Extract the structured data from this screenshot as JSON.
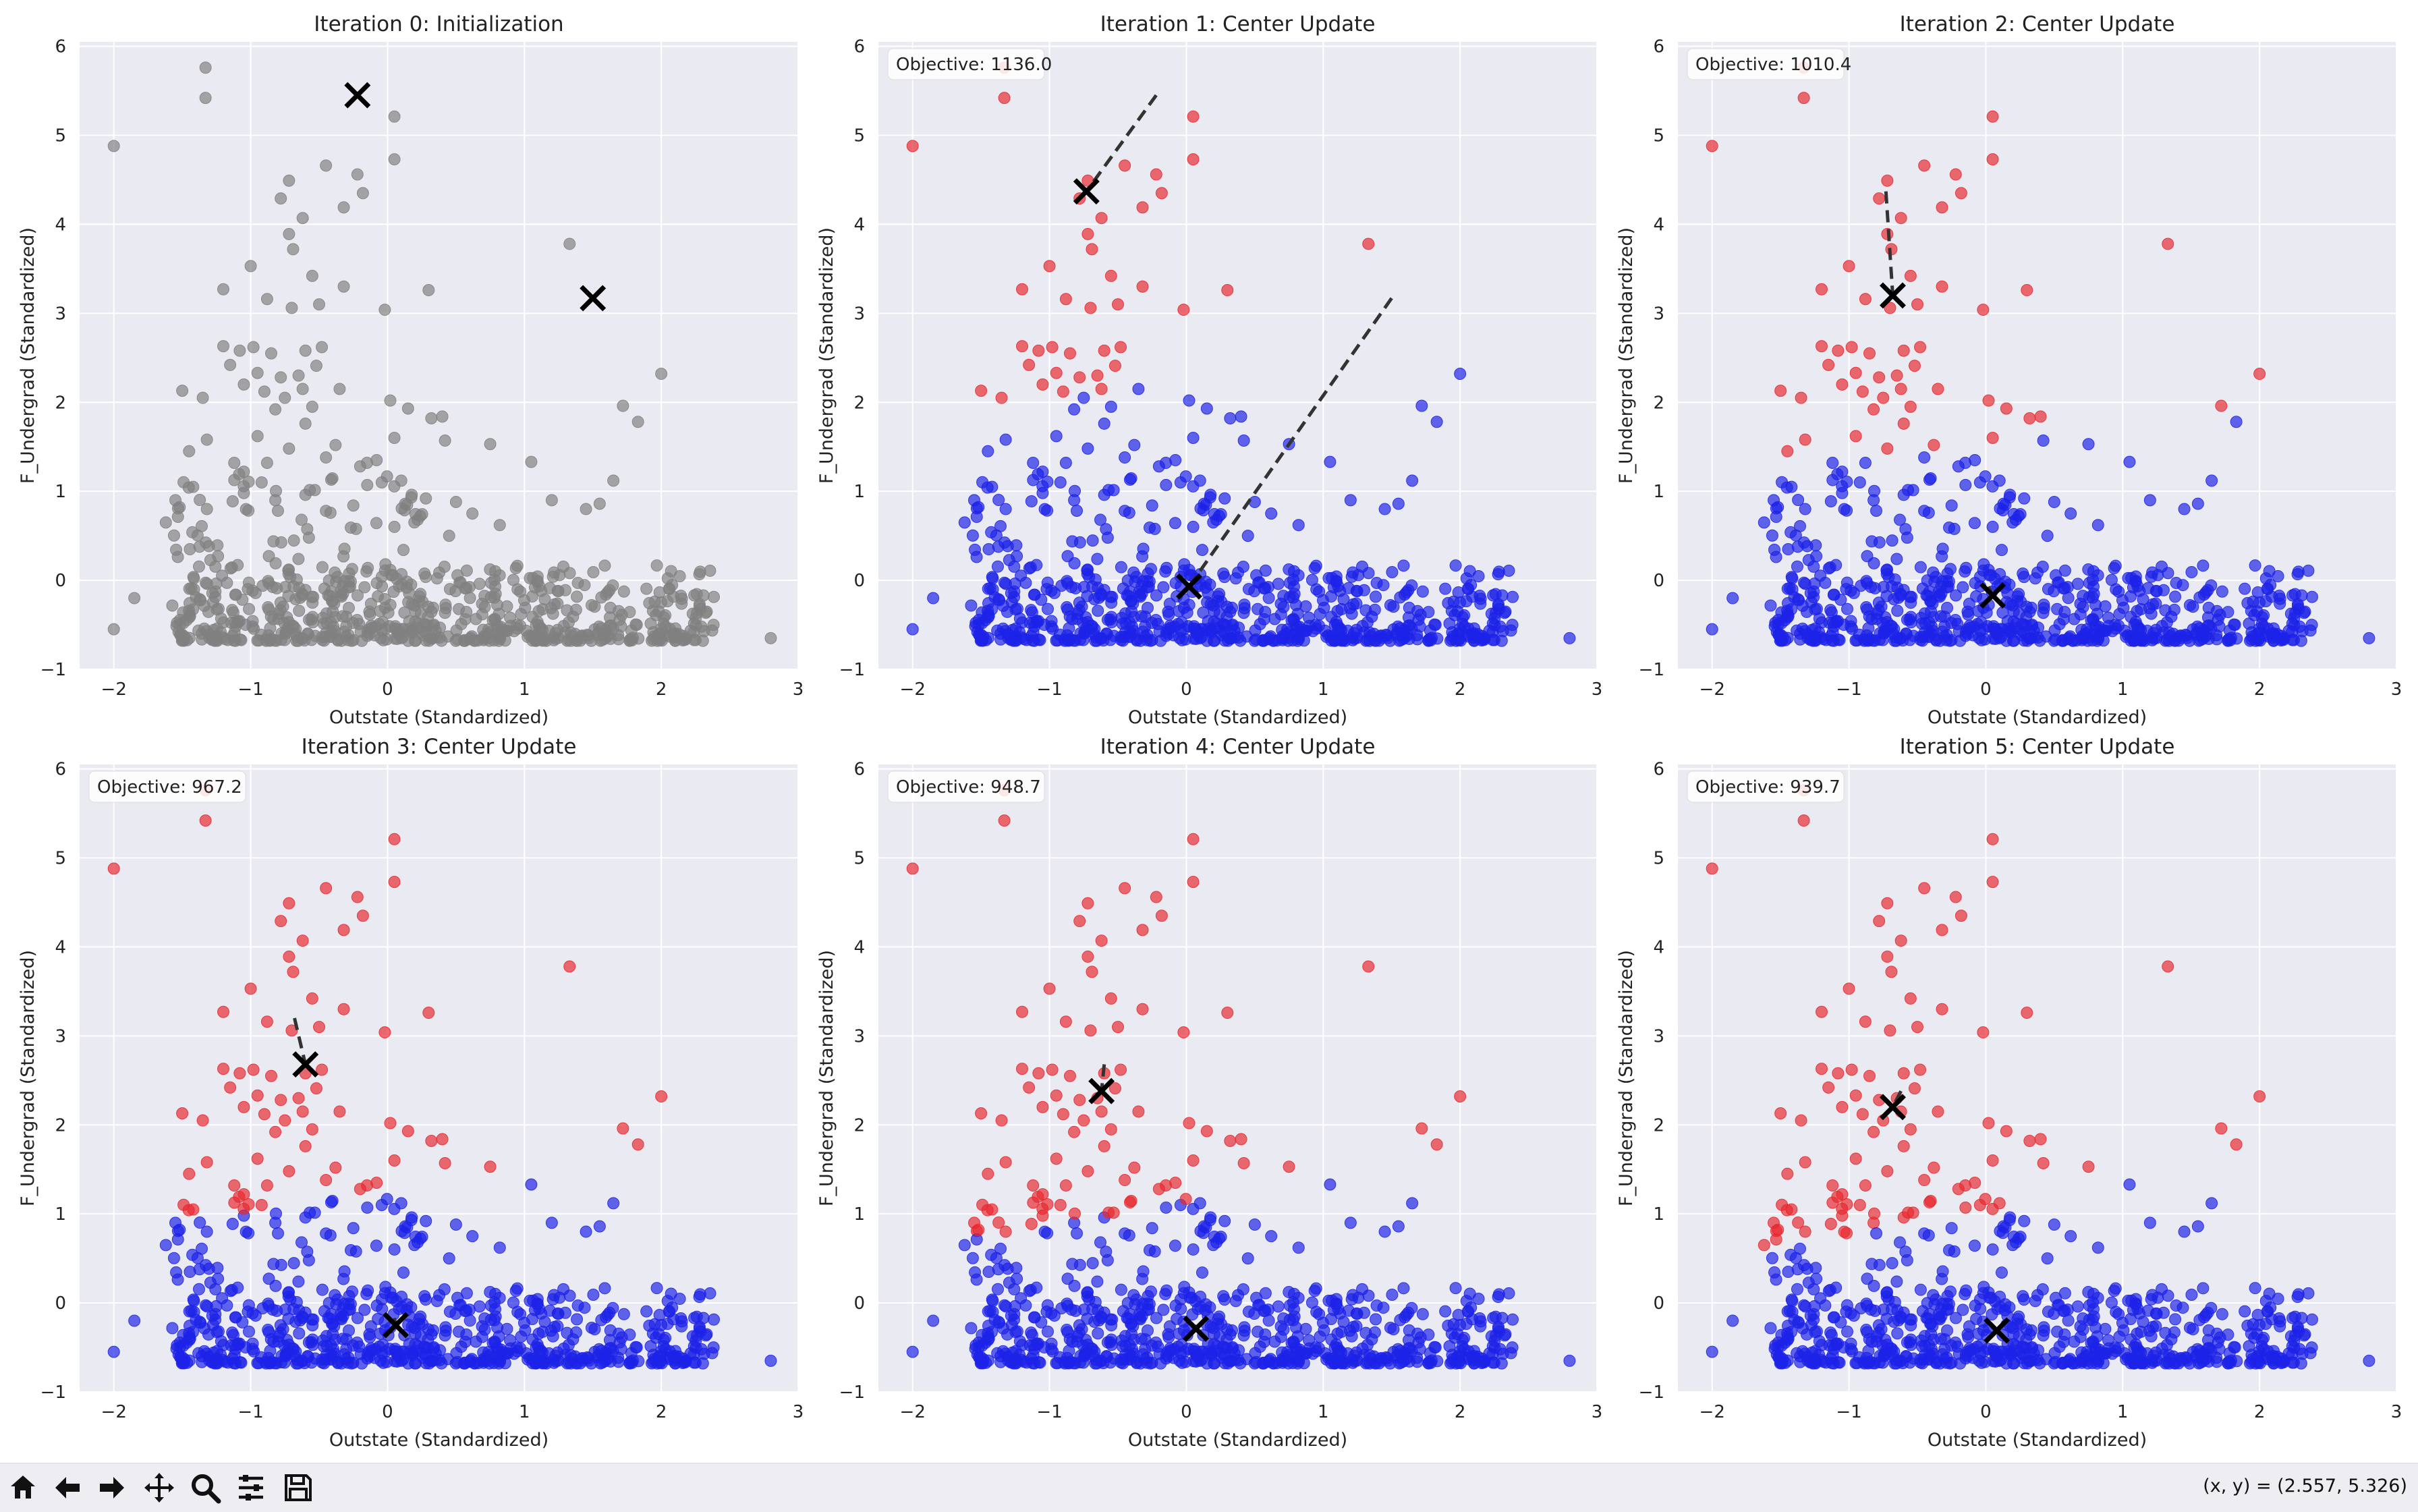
{
  "chart_data": [
    {
      "type": "scatter",
      "title": "Iteration 0: Initialization",
      "xlabel": "Outstate (Standardized)",
      "ylabel": "F_Undergrad (Standardized)",
      "xlim": [
        -2.25,
        3.0
      ],
      "ylim": [
        -1.0,
        6.05
      ],
      "xticks": [
        "−2",
        "−1",
        "0",
        "1",
        "2",
        "3"
      ],
      "yticks": [
        "−1",
        "0",
        "1",
        "2",
        "3",
        "4",
        "5",
        "6"
      ],
      "objective": null,
      "assignment": "none",
      "centers": [
        [
          -0.22,
          5.45
        ],
        [
          1.5,
          3.17
        ]
      ],
      "prev_centers": []
    },
    {
      "type": "scatter",
      "title": "Iteration 1: Center Update",
      "xlabel": "Outstate (Standardized)",
      "ylabel": "F_Undergrad (Standardized)",
      "xlim": [
        -2.25,
        3.0
      ],
      "ylim": [
        -1.0,
        6.05
      ],
      "xticks": [
        "−2",
        "−1",
        "0",
        "1",
        "2",
        "3"
      ],
      "yticks": [
        "−1",
        "0",
        "1",
        "2",
        "3",
        "4",
        "5",
        "6"
      ],
      "objective": "Objective: 1136.0",
      "assignment": "it1",
      "centers": [
        [
          -0.73,
          4.37
        ],
        [
          0.02,
          -0.07
        ]
      ],
      "prev_centers": [
        [
          -0.22,
          5.45
        ],
        [
          1.5,
          3.17
        ]
      ]
    },
    {
      "type": "scatter",
      "title": "Iteration 2: Center Update",
      "xlabel": "Outstate (Standardized)",
      "ylabel": "F_Undergrad (Standardized)",
      "xlim": [
        -2.25,
        3.0
      ],
      "ylim": [
        -1.0,
        6.05
      ],
      "xticks": [
        "−2",
        "−1",
        "0",
        "1",
        "2",
        "3"
      ],
      "yticks": [
        "−1",
        "0",
        "1",
        "2",
        "3",
        "4",
        "5",
        "6"
      ],
      "objective": "Objective: 1010.4",
      "assignment": "it2",
      "centers": [
        [
          -0.68,
          3.2
        ],
        [
          0.05,
          -0.17
        ]
      ],
      "prev_centers": [
        [
          -0.73,
          4.37
        ],
        [
          0.02,
          -0.07
        ]
      ]
    },
    {
      "type": "scatter",
      "title": "Iteration 3: Center Update",
      "xlabel": "Outstate (Standardized)",
      "ylabel": "F_Undergrad (Standardized)",
      "xlim": [
        -2.25,
        3.0
      ],
      "ylim": [
        -1.0,
        6.05
      ],
      "xticks": [
        "−2",
        "−1",
        "0",
        "1",
        "2",
        "3"
      ],
      "yticks": [
        "−1",
        "0",
        "1",
        "2",
        "3",
        "4",
        "5",
        "6"
      ],
      "objective": "Objective: 967.2",
      "assignment": "it3",
      "centers": [
        [
          -0.6,
          2.68
        ],
        [
          0.06,
          -0.25
        ]
      ],
      "prev_centers": [
        [
          -0.68,
          3.2
        ],
        [
          0.05,
          -0.17
        ]
      ]
    },
    {
      "type": "scatter",
      "title": "Iteration 4: Center Update",
      "xlabel": "Outstate (Standardized)",
      "ylabel": "F_Undergrad (Standardized)",
      "xlim": [
        -2.25,
        3.0
      ],
      "ylim": [
        -1.0,
        6.05
      ],
      "xticks": [
        "−2",
        "−1",
        "0",
        "1",
        "2",
        "3"
      ],
      "yticks": [
        "−1",
        "0",
        "1",
        "2",
        "3",
        "4",
        "5",
        "6"
      ],
      "objective": "Objective: 948.7",
      "assignment": "it4",
      "centers": [
        [
          -0.62,
          2.38
        ],
        [
          0.07,
          -0.29
        ]
      ],
      "prev_centers": [
        [
          -0.6,
          2.68
        ],
        [
          0.06,
          -0.25
        ]
      ]
    },
    {
      "type": "scatter",
      "title": "Iteration 5: Center Update",
      "xlabel": "Outstate (Standardized)",
      "ylabel": "F_Undergrad (Standardized)",
      "xlim": [
        -2.25,
        3.0
      ],
      "ylim": [
        -1.0,
        6.05
      ],
      "xticks": [
        "−2",
        "−1",
        "0",
        "1",
        "2",
        "3"
      ],
      "yticks": [
        "−1",
        "0",
        "1",
        "2",
        "3",
        "4",
        "5",
        "6"
      ],
      "objective": "Objective: 939.7",
      "assignment": "it5",
      "centers": [
        [
          -0.68,
          2.2
        ],
        [
          0.08,
          -0.31
        ]
      ],
      "prev_centers": [
        [
          -0.62,
          2.38
        ],
        [
          0.07,
          -0.29
        ]
      ]
    }
  ],
  "points": [
    [
      -2.0,
      4.88
    ],
    [
      -1.33,
      5.76
    ],
    [
      -1.33,
      5.42
    ],
    [
      0.05,
      5.21
    ],
    [
      0.05,
      4.73
    ],
    [
      -0.22,
      4.56
    ],
    [
      -0.45,
      4.66
    ],
    [
      -0.18,
      4.35
    ],
    [
      -0.32,
      4.19
    ],
    [
      -0.72,
      4.49
    ],
    [
      -0.78,
      4.29
    ],
    [
      -0.62,
      4.07
    ],
    [
      -0.72,
      3.89
    ],
    [
      -0.69,
      3.72
    ],
    [
      -1.0,
      3.53
    ],
    [
      -0.55,
      3.42
    ],
    [
      -1.2,
      3.27
    ],
    [
      -0.32,
      3.3
    ],
    [
      -0.88,
      3.16
    ],
    [
      -0.7,
      3.06
    ],
    [
      -0.02,
      3.04
    ],
    [
      -0.5,
      3.1
    ],
    [
      0.3,
      3.26
    ],
    [
      1.33,
      3.78
    ],
    [
      -1.2,
      2.63
    ],
    [
      -1.08,
      2.58
    ],
    [
      -0.98,
      2.62
    ],
    [
      -0.85,
      2.55
    ],
    [
      -0.6,
      2.58
    ],
    [
      -0.48,
      2.62
    ],
    [
      -1.15,
      2.42
    ],
    [
      -0.95,
      2.33
    ],
    [
      -0.78,
      2.28
    ],
    [
      -0.65,
      2.3
    ],
    [
      -0.52,
      2.41
    ],
    [
      -0.62,
      2.15
    ],
    [
      -0.75,
      2.05
    ],
    [
      -0.9,
      2.12
    ],
    [
      -1.05,
      2.2
    ],
    [
      -0.35,
      2.15
    ],
    [
      0.02,
      2.02
    ],
    [
      -0.55,
      1.95
    ],
    [
      -0.82,
      1.92
    ],
    [
      2.0,
      2.32
    ],
    [
      -1.5,
      2.13
    ],
    [
      -1.35,
      2.05
    ],
    [
      -0.95,
      1.62
    ],
    [
      -1.32,
      1.58
    ],
    [
      -0.45,
      1.38
    ],
    [
      0.15,
      1.93
    ],
    [
      0.32,
      1.82
    ],
    [
      0.4,
      1.84
    ],
    [
      -1.45,
      1.45
    ],
    [
      -1.12,
      1.32
    ],
    [
      -1.05,
      1.22
    ],
    [
      -0.88,
      1.32
    ],
    [
      -0.72,
      1.48
    ],
    [
      -0.38,
      1.52
    ],
    [
      -0.15,
      1.32
    ],
    [
      -0.08,
      1.35
    ],
    [
      0.05,
      1.6
    ],
    [
      0.42,
      1.57
    ],
    [
      0.75,
      1.53
    ],
    [
      1.72,
      1.96
    ],
    [
      1.83,
      1.78
    ],
    [
      -0.6,
      1.76
    ],
    [
      -0.2,
      1.28
    ],
    [
      -1.62,
      0.65
    ],
    [
      -1.55,
      0.9
    ],
    [
      -1.42,
      1.05
    ],
    [
      -1.32,
      0.8
    ],
    [
      -1.05,
      0.98
    ],
    [
      -0.92,
      1.1
    ],
    [
      -0.82,
      0.9
    ],
    [
      -0.6,
      0.96
    ],
    [
      -0.45,
      0.78
    ],
    [
      -0.25,
      0.84
    ],
    [
      0.1,
      1.12
    ],
    [
      0.28,
      0.92
    ],
    [
      0.5,
      0.88
    ],
    [
      0.62,
      0.75
    ],
    [
      1.05,
      1.33
    ],
    [
      1.2,
      0.9
    ],
    [
      1.45,
      0.8
    ],
    [
      1.55,
      0.86
    ],
    [
      1.65,
      1.12
    ],
    [
      0.05,
      0.6
    ],
    [
      0.22,
      0.68
    ],
    [
      0.45,
      0.5
    ],
    [
      0.82,
      0.62
    ]
  ],
  "toolbar": {
    "buttons": [
      "home-icon",
      "back-arrow-icon",
      "forward-arrow-icon",
      "pan-icon",
      "zoom-icon",
      "subplots-icon",
      "save-icon"
    ],
    "coords": "(x, y) = (2.557, 5.326)"
  },
  "colors": {
    "grey": "#808080",
    "red": "#e8282d",
    "blue": "#1c22e8",
    "axes_bg": "#eaeaf2",
    "grid": "#ffffff",
    "center": "#000000"
  }
}
